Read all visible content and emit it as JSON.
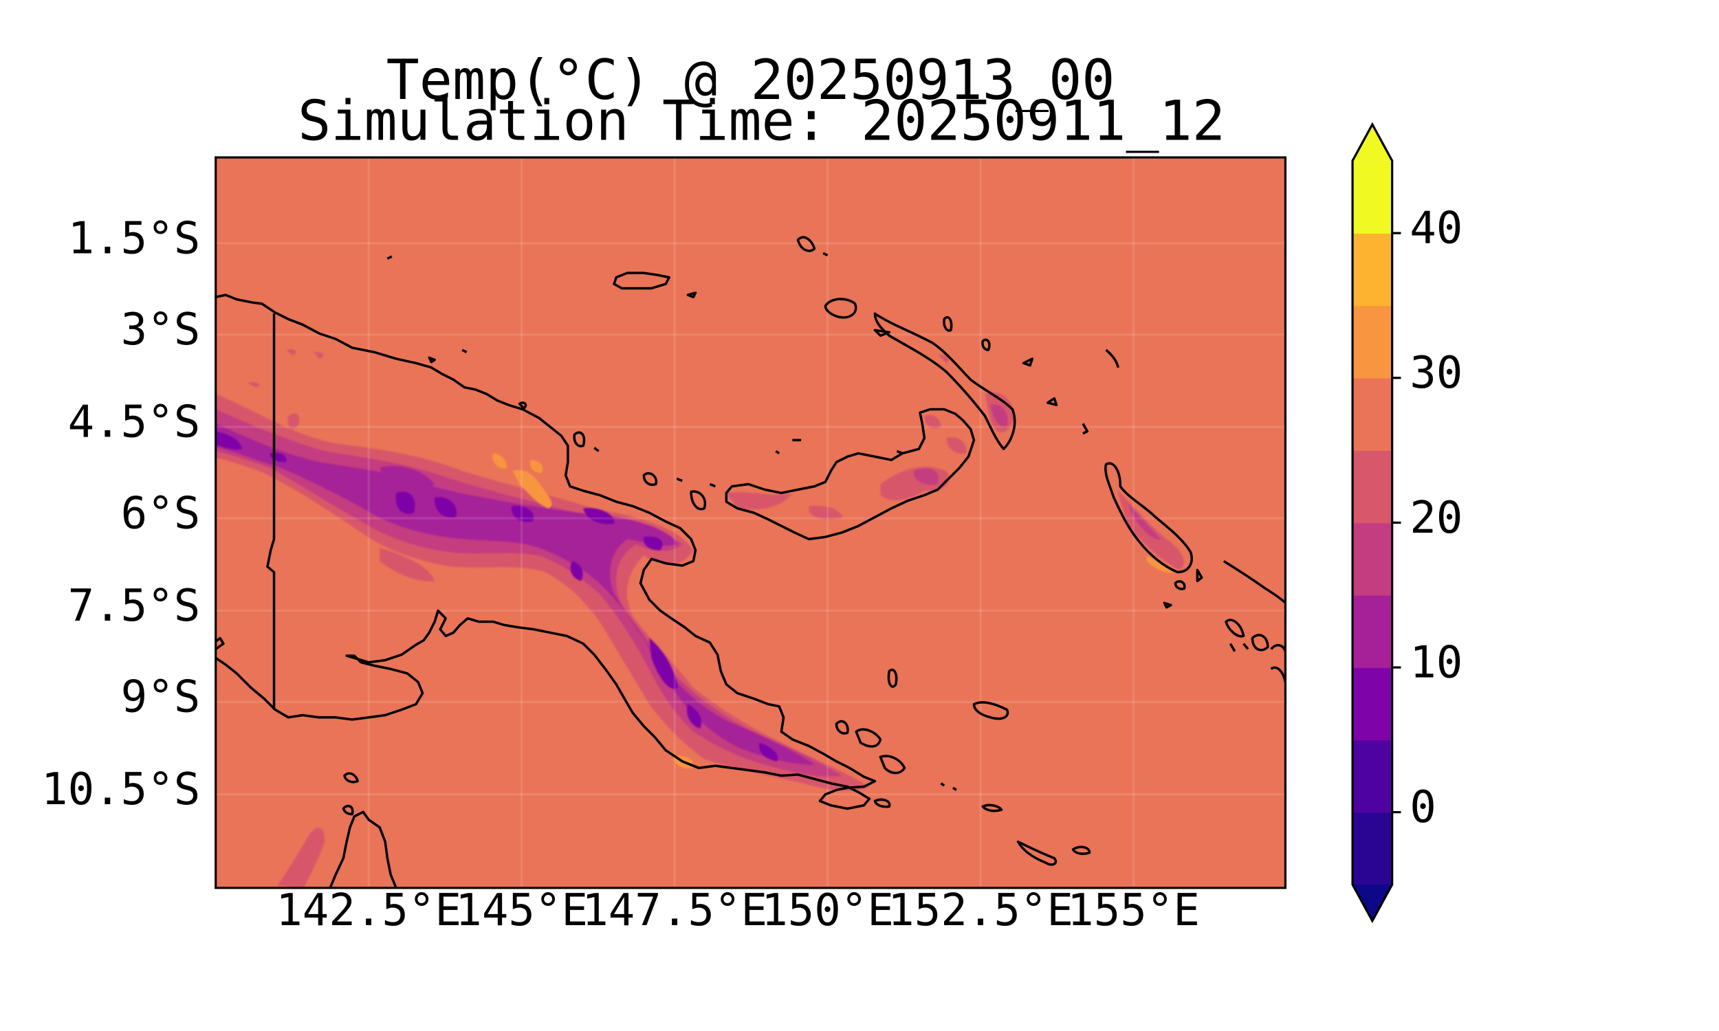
{
  "title": {
    "line1": "Temp(°C) @ 20250913_00",
    "line2": "Simulation Time: 20250911_12"
  },
  "map": {
    "lon_range": [
      140.0,
      157.5
    ],
    "lat_range": [
      -12.0,
      0.0
    ],
    "projection": "PlateCarree",
    "gridlines": true,
    "coastlines": true,
    "background_value_c": 27,
    "lat_ticks": [
      {
        "value": -1.5,
        "label": "1.5°S"
      },
      {
        "value": -3.0,
        "label": "3°S"
      },
      {
        "value": -4.5,
        "label": "4.5°S"
      },
      {
        "value": -6.0,
        "label": "6°S"
      },
      {
        "value": -7.5,
        "label": "7.5°S"
      },
      {
        "value": -9.0,
        "label": "9°S"
      },
      {
        "value": -10.5,
        "label": "10.5°S"
      }
    ],
    "lon_ticks": [
      {
        "value": 142.5,
        "label": "142.5°E"
      },
      {
        "value": 145.0,
        "label": "145°E"
      },
      {
        "value": 147.5,
        "label": "147.5°E"
      },
      {
        "value": 150.0,
        "label": "150°E"
      },
      {
        "value": 152.5,
        "label": "152.5°E"
      },
      {
        "value": 155.0,
        "label": "155°E"
      }
    ]
  },
  "colorbar": {
    "levels": [
      -5,
      0,
      5,
      10,
      15,
      20,
      25,
      30,
      35,
      40,
      45
    ],
    "colors": [
      "#2a0594",
      "#4f02a2",
      "#7e03a8",
      "#a62098",
      "#c33d80",
      "#d8576b",
      "#ea7457",
      "#f89540",
      "#fdb32f",
      "#f0f921"
    ],
    "under_color": "#0d0887",
    "over_color": "#f0f921",
    "extend": "both",
    "ticks": [
      {
        "value": 0,
        "label": "0"
      },
      {
        "value": 10,
        "label": "10"
      },
      {
        "value": 20,
        "label": "20"
      },
      {
        "value": 30,
        "label": "30"
      },
      {
        "value": 40,
        "label": "40"
      }
    ]
  }
}
